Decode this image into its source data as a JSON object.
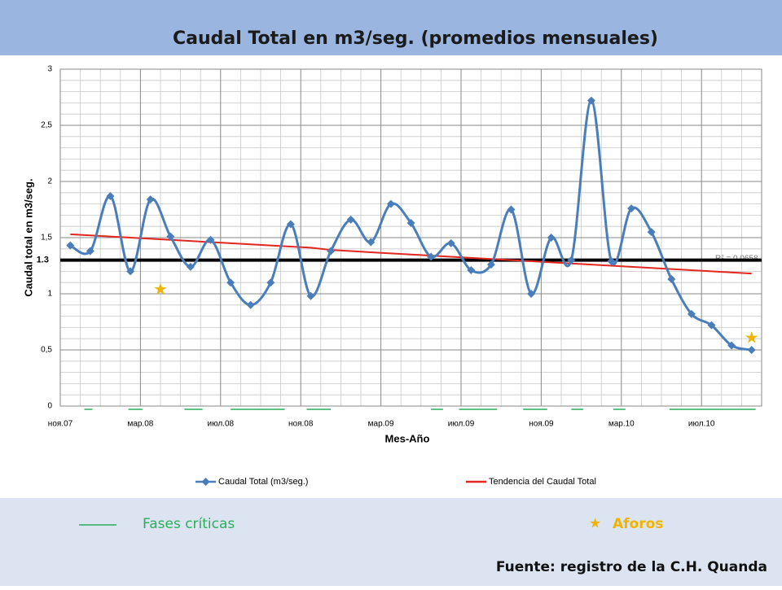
{
  "chart_data": {
    "type": "line",
    "title": "Caudal Total en m3/seg. (promedios mensuales)",
    "x_label": "Mes-Año",
    "y_label": "Caudal total en m3/seg.",
    "categories": [
      "ноя.07",
      null,
      null,
      null,
      "мар.08",
      null,
      null,
      null,
      "июл.08",
      null,
      null,
      null,
      "ноя.08",
      null,
      null,
      null,
      "мар.09",
      null,
      null,
      null,
      "июл.09",
      null,
      null,
      null,
      "ноя.09",
      null,
      null,
      null,
      "мар.10",
      null,
      null,
      null,
      "июл.10",
      null,
      null
    ],
    "series": [
      {
        "name": "Caudal Total (m3/seg.)",
        "color": "#4a7ebb",
        "smooth": true,
        "marker": "diamond",
        "values": [
          1.43,
          1.38,
          1.87,
          1.2,
          1.84,
          1.51,
          1.24,
          1.48,
          1.1,
          0.9,
          1.1,
          1.62,
          0.98,
          1.38,
          1.66,
          1.46,
          1.8,
          1.63,
          1.33,
          1.45,
          1.21,
          1.26,
          1.75,
          1.0,
          1.5,
          1.3,
          2.72,
          1.29,
          1.76,
          1.55,
          1.13,
          0.82,
          0.72,
          0.54,
          0.5
        ]
      },
      {
        "name": "Tendencia del Caudal Total",
        "color": "#e3261f",
        "smooth": false,
        "marker": "none",
        "values": [
          1.53,
          1.52,
          1.51,
          1.5,
          1.49,
          1.48,
          1.47,
          1.46,
          1.45,
          1.44,
          1.43,
          1.42,
          1.41,
          1.39,
          1.38,
          1.37,
          1.36,
          1.35,
          1.34,
          1.33,
          1.32,
          1.31,
          1.3,
          1.29,
          1.28,
          1.27,
          1.26,
          1.25,
          1.24,
          1.23,
          1.22,
          1.21,
          1.2,
          1.19,
          1.18
        ]
      }
    ],
    "ylim": [
      0,
      3
    ],
    "yticks": [
      0,
      {
        "value": 0.5,
        "label": "0,5"
      },
      1,
      {
        "value": 1.5,
        "label": "1,5"
      },
      2,
      {
        "value": 2.5,
        "label": "2,5"
      },
      3
    ],
    "threshold": {
      "value": 1.3,
      "label": "1.3",
      "color": "#000000"
    },
    "r_squared": "R² = 0,0658",
    "grid": true,
    "legend": "bottom",
    "critical_phases": {
      "name": "Fases críticas",
      "color": "#2aae5a",
      "ranges": [
        [
          1.2,
          1.6
        ],
        [
          3.4,
          4.1
        ],
        [
          6.2,
          7.1
        ],
        [
          8.5,
          11.2
        ],
        [
          12.3,
          13.5
        ],
        [
          18.5,
          19.1
        ],
        [
          19.9,
          21.8
        ],
        [
          23.1,
          24.3
        ],
        [
          25.5,
          26.1
        ],
        [
          27.6,
          28.2
        ],
        [
          30.4,
          34.7
        ]
      ]
    },
    "aforos": {
      "name": "Aforos",
      "symbol": "★",
      "color": "#f0b400",
      "points": [
        {
          "index": 4.5,
          "value": 1.03
        },
        {
          "index": 34,
          "value": 0.6
        }
      ]
    },
    "source": "Fuente: registro de la C.H. Quanda"
  }
}
